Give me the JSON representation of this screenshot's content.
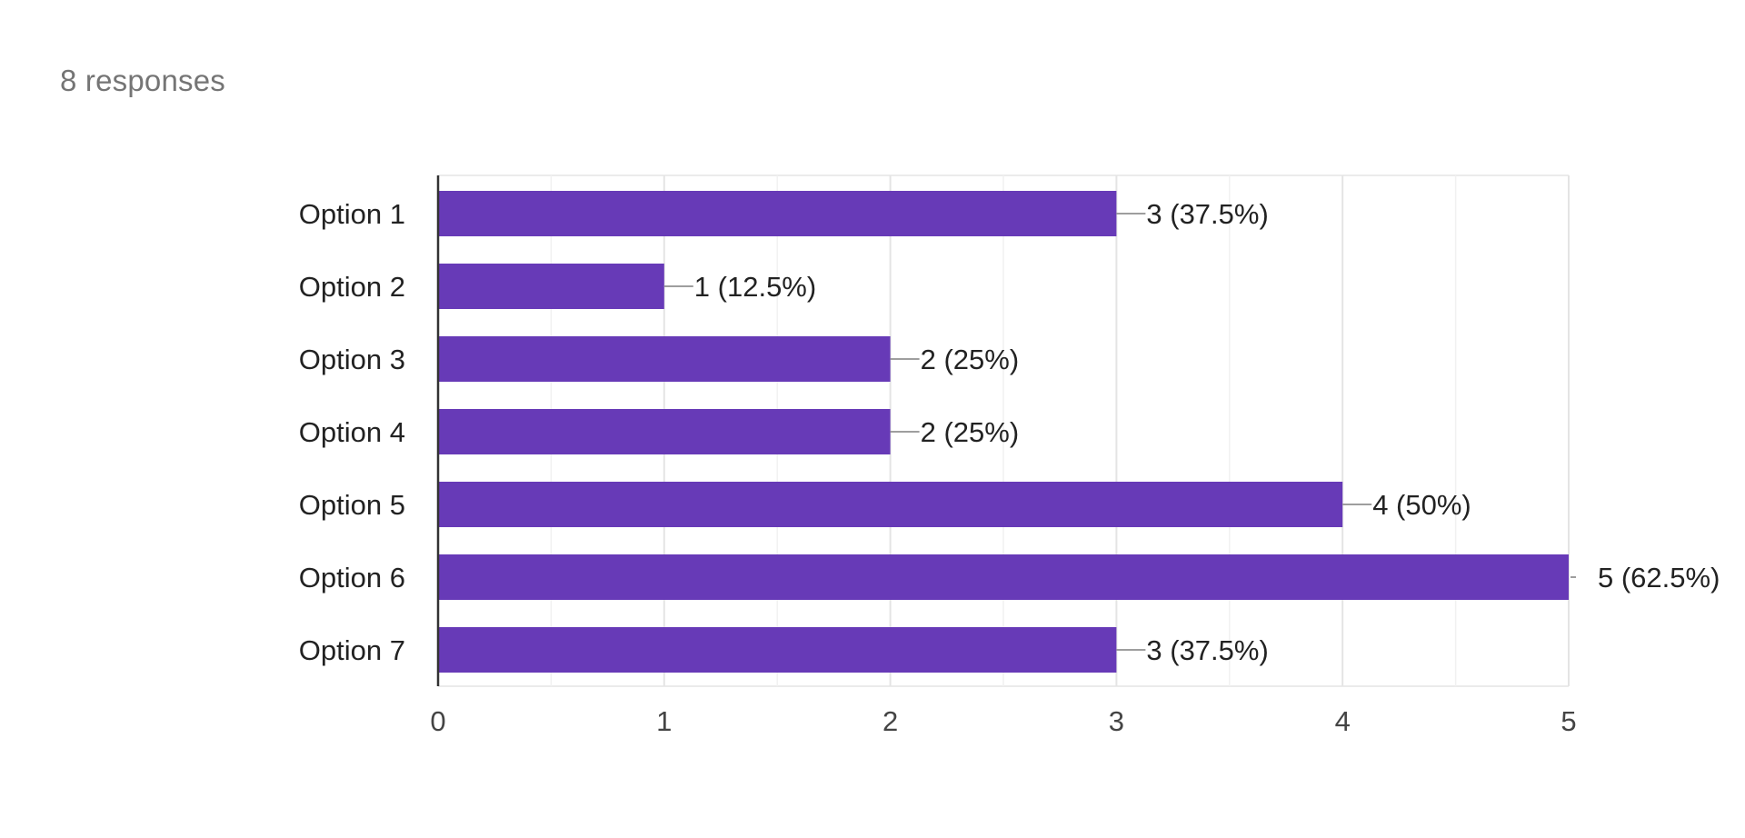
{
  "summary": {
    "responses_text": "8 responses"
  },
  "chart_data": {
    "type": "bar",
    "orientation": "horizontal",
    "categories": [
      "Option 1",
      "Option 2",
      "Option 3",
      "Option 4",
      "Option 5",
      "Option 6",
      "Option 7"
    ],
    "values": [
      3,
      1,
      2,
      2,
      4,
      5,
      3
    ],
    "data_labels": [
      "3 (37.5%)",
      "1 (12.5%)",
      "2 (25%)",
      "2 (25%)",
      "4 (50%)",
      "5 (62.5%)",
      "3 (37.5%)"
    ],
    "x_ticks": [
      "0",
      "1",
      "2",
      "3",
      "4",
      "5"
    ],
    "xlim": [
      0,
      5
    ],
    "grid": true,
    "bar_color": "#673ab7",
    "grid_color": "#ebebeb",
    "leader_color": "#9e9e9e",
    "title": "",
    "xlabel": "",
    "ylabel": ""
  }
}
